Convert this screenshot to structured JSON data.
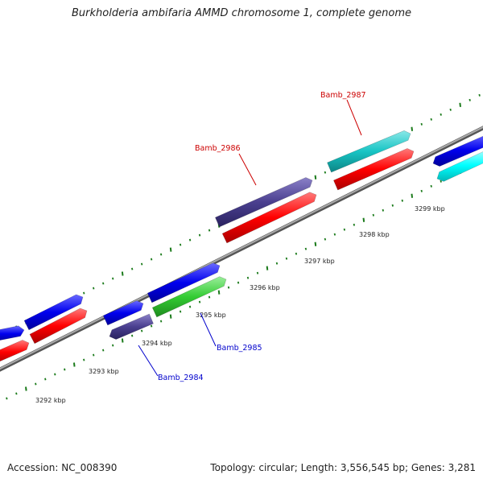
{
  "title": "Burkholderia ambifaria AMMD chromosome 1, complete genome",
  "footer": {
    "accession": "Accession: NC_008390",
    "topology": "Topology: circular; Length: 3,556,545 bp; Genes: 3,281"
  },
  "scale_labels": [
    "3292 kbp",
    "3293 kbp",
    "3294 kbp",
    "3295 kbp",
    "3296 kbp",
    "3297 kbp",
    "3298 kbp",
    "3299 kbp"
  ],
  "gene_labels": [
    "Bamb_2984",
    "Bamb_2985",
    "Bamb_2986",
    "Bamb_2987"
  ],
  "colors": {
    "blue": "#0000ee",
    "red": "#ff0000",
    "slate": "#4a3f8f",
    "green": "#33cc33",
    "teal": "#17c4c4",
    "cyan": "#00ffff",
    "tick": "#1a7a1a",
    "backbone": "#888888",
    "label_red": "#cc0000",
    "label_blue": "#0000cc"
  }
}
